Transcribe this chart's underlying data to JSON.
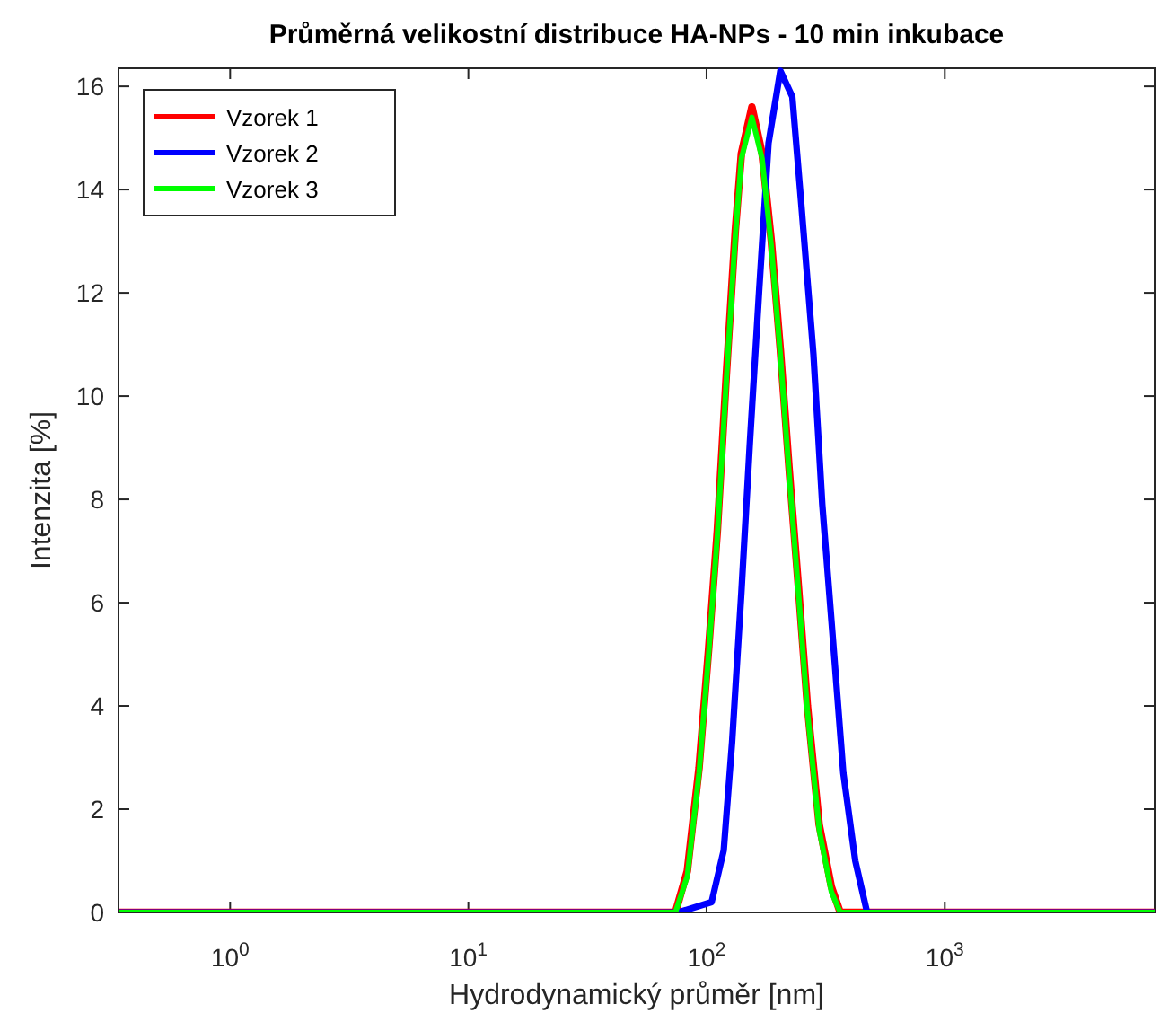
{
  "chart_data": {
    "type": "line",
    "title": "Průměrná velikostní distribuce HA-NPs - 10 min inkubace",
    "xlabel": "Hydrodynamický průměr [nm]",
    "ylabel": "Intenzita [%]",
    "log": "x",
    "xlim": [
      0.34,
      7600
    ],
    "ylim": [
      0,
      16.35
    ],
    "xticks": [
      {
        "value": 1,
        "label": "10$^{0}$"
      },
      {
        "value": 10,
        "label": "10$^{1}$"
      },
      {
        "value": 100,
        "label": "10$^{2}$"
      },
      {
        "value": 1000,
        "label": "10$^{3}$"
      }
    ],
    "yticks": [
      0,
      2,
      4,
      6,
      8,
      10,
      12,
      14,
      16
    ],
    "grid": false,
    "legend": "top left",
    "line_style": "solid",
    "series": [
      {
        "name": "Vzorek 1",
        "color": "#ff0000",
        "x": [
          0.34,
          74,
          83,
          93,
          102,
          111,
          121,
          132,
          140,
          155,
          171,
          187,
          204,
          222,
          243,
          265,
          297,
          334,
          364,
          7600
        ],
        "values": [
          0,
          0,
          0.8,
          2.8,
          5.1,
          7.4,
          10.4,
          13.2,
          14.7,
          15.6,
          14.7,
          13.0,
          10.9,
          8.6,
          6.3,
          4.0,
          1.7,
          0.5,
          0,
          0
        ]
      },
      {
        "name": "Vzorek 2",
        "color": "#0000ff",
        "x": [
          0.34,
          76,
          105,
          118,
          128,
          140,
          152,
          166,
          182,
          204,
          229,
          250,
          281,
          306,
          343,
          375,
          421,
          472,
          7600
        ],
        "values": [
          0,
          0,
          0.2,
          1.2,
          3.3,
          6.2,
          9.1,
          12.0,
          14.9,
          16.3,
          15.8,
          13.7,
          10.8,
          7.9,
          5.0,
          2.7,
          1.0,
          0,
          0
        ]
      },
      {
        "name": "Vzorek 3",
        "color": "#00ff00",
        "x": [
          0.34,
          74,
          83,
          93,
          102,
          111,
          121,
          132,
          140,
          155,
          171,
          187,
          204,
          222,
          243,
          265,
          297,
          334,
          364,
          7600
        ],
        "values": [
          0,
          0,
          0.7,
          2.7,
          5.0,
          7.3,
          10.3,
          13.1,
          14.6,
          15.4,
          14.6,
          12.9,
          10.8,
          8.5,
          6.2,
          3.9,
          1.6,
          0.4,
          0,
          0
        ]
      }
    ]
  }
}
